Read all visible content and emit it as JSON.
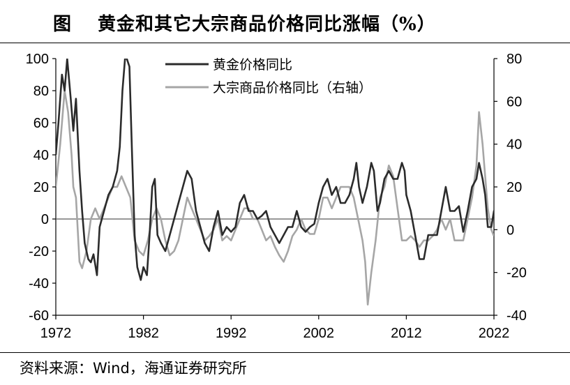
{
  "header": {
    "label": "图",
    "title": "黄金和其它大宗商品价格同比涨幅（%）"
  },
  "footer": {
    "source": "资料来源：Wind，海通证券研究所"
  },
  "colors": {
    "gold": "#2b2b2b",
    "commodity": "#a6a6a6",
    "axis": "#000000"
  },
  "chart_data": {
    "type": "line",
    "title": "黄金和其它大宗商品价格同比涨幅（%）",
    "x_ticks": [
      "1972",
      "1982",
      "1992",
      "2002",
      "2012",
      "2022"
    ],
    "xlim": [
      1972,
      2022
    ],
    "left_axis": {
      "ylim": [
        -60,
        100
      ],
      "ticks": [
        "100",
        "80",
        "60",
        "40",
        "20",
        "0",
        "-20",
        "-40",
        "-60"
      ]
    },
    "right_axis": {
      "ylim": [
        -40,
        80
      ],
      "ticks": [
        "80",
        "60",
        "40",
        "20",
        "0",
        "-20",
        "-40"
      ]
    },
    "legend": {
      "placement": "top-center"
    },
    "series": [
      {
        "name": "黄金价格同比",
        "axis": "left",
        "points": [
          [
            1972,
            40
          ],
          [
            1972.3,
            60
          ],
          [
            1972.7,
            90
          ],
          [
            1973,
            80
          ],
          [
            1973.3,
            100
          ],
          [
            1973.7,
            75
          ],
          [
            1974,
            55
          ],
          [
            1974.3,
            75
          ],
          [
            1974.7,
            30
          ],
          [
            1975,
            5
          ],
          [
            1975.3,
            -15
          ],
          [
            1975.7,
            -25
          ],
          [
            1976,
            -27
          ],
          [
            1976.3,
            -22
          ],
          [
            1976.7,
            -35
          ],
          [
            1977,
            -5
          ],
          [
            1977.5,
            5
          ],
          [
            1978,
            15
          ],
          [
            1978.5,
            20
          ],
          [
            1979,
            30
          ],
          [
            1979.3,
            45
          ],
          [
            1979.6,
            80
          ],
          [
            1979.9,
            100
          ],
          [
            1980.1,
            100
          ],
          [
            1980.4,
            95
          ],
          [
            1980.7,
            40
          ],
          [
            1981,
            -10
          ],
          [
            1981.3,
            -30
          ],
          [
            1981.7,
            -38
          ],
          [
            1982,
            -30
          ],
          [
            1982.4,
            -35
          ],
          [
            1982.7,
            -10
          ],
          [
            1983,
            20
          ],
          [
            1983.3,
            25
          ],
          [
            1983.6,
            -10
          ],
          [
            1984,
            -15
          ],
          [
            1984.5,
            -20
          ],
          [
            1985,
            -10
          ],
          [
            1985.5,
            0
          ],
          [
            1986,
            10
          ],
          [
            1986.5,
            20
          ],
          [
            1987,
            30
          ],
          [
            1987.5,
            25
          ],
          [
            1988,
            5
          ],
          [
            1988.5,
            -5
          ],
          [
            1989,
            -15
          ],
          [
            1989.5,
            -20
          ],
          [
            1990,
            -5
          ],
          [
            1990.5,
            5
          ],
          [
            1991,
            -10
          ],
          [
            1991.5,
            -5
          ],
          [
            1992,
            -8
          ],
          [
            1992.5,
            -5
          ],
          [
            1993,
            10
          ],
          [
            1993.5,
            15
          ],
          [
            1994,
            5
          ],
          [
            1994.5,
            5
          ],
          [
            1995,
            0
          ],
          [
            1995.5,
            2
          ],
          [
            1996,
            5
          ],
          [
            1996.5,
            -5
          ],
          [
            1997,
            -10
          ],
          [
            1997.5,
            -15
          ],
          [
            1998,
            -10
          ],
          [
            1998.5,
            -5
          ],
          [
            1999,
            -5
          ],
          [
            1999.5,
            5
          ],
          [
            2000,
            -5
          ],
          [
            2000.5,
            -8
          ],
          [
            2001,
            -5
          ],
          [
            2001.5,
            -3
          ],
          [
            2002,
            10
          ],
          [
            2002.5,
            20
          ],
          [
            2003,
            25
          ],
          [
            2003.5,
            15
          ],
          [
            2004,
            20
          ],
          [
            2004.5,
            10
          ],
          [
            2005,
            10
          ],
          [
            2005.5,
            15
          ],
          [
            2006,
            25
          ],
          [
            2006.3,
            35
          ],
          [
            2006.6,
            20
          ],
          [
            2007,
            10
          ],
          [
            2007.5,
            20
          ],
          [
            2008,
            35
          ],
          [
            2008.3,
            30
          ],
          [
            2008.7,
            5
          ],
          [
            2009,
            10
          ],
          [
            2009.5,
            25
          ],
          [
            2010,
            30
          ],
          [
            2010.5,
            25
          ],
          [
            2011,
            25
          ],
          [
            2011.5,
            35
          ],
          [
            2011.8,
            30
          ],
          [
            2012,
            15
          ],
          [
            2012.5,
            5
          ],
          [
            2013,
            -10
          ],
          [
            2013.5,
            -25
          ],
          [
            2014,
            -25
          ],
          [
            2014.5,
            -10
          ],
          [
            2015,
            -10
          ],
          [
            2015.5,
            -10
          ],
          [
            2016,
            5
          ],
          [
            2016.5,
            20
          ],
          [
            2017,
            5
          ],
          [
            2017.5,
            5
          ],
          [
            2018,
            8
          ],
          [
            2018.5,
            -8
          ],
          [
            2019,
            5
          ],
          [
            2019.5,
            20
          ],
          [
            2020,
            25
          ],
          [
            2020.3,
            35
          ],
          [
            2020.7,
            25
          ],
          [
            2021,
            15
          ],
          [
            2021.3,
            -5
          ],
          [
            2021.7,
            -5
          ],
          [
            2022,
            5
          ],
          [
            2022.3,
            -5
          ]
        ]
      },
      {
        "name": "大宗商品价格同比（右轴）",
        "axis": "right",
        "points": [
          [
            1972,
            20
          ],
          [
            1972.5,
            40
          ],
          [
            1973,
            65
          ],
          [
            1973.4,
            55
          ],
          [
            1973.8,
            35
          ],
          [
            1974,
            20
          ],
          [
            1974.3,
            15
          ],
          [
            1974.7,
            -15
          ],
          [
            1975,
            -18
          ],
          [
            1975.5,
            -10
          ],
          [
            1976,
            5
          ],
          [
            1976.5,
            10
          ],
          [
            1977,
            5
          ],
          [
            1977.5,
            10
          ],
          [
            1978,
            15
          ],
          [
            1978.5,
            20
          ],
          [
            1979,
            20
          ],
          [
            1979.5,
            25
          ],
          [
            1980,
            20
          ],
          [
            1980.5,
            15
          ],
          [
            1981,
            -5
          ],
          [
            1981.5,
            -10
          ],
          [
            1982,
            -12
          ],
          [
            1982.5,
            -5
          ],
          [
            1983,
            5
          ],
          [
            1983.5,
            10
          ],
          [
            1984,
            5
          ],
          [
            1984.5,
            -5
          ],
          [
            1985,
            -12
          ],
          [
            1985.5,
            -10
          ],
          [
            1986,
            -5
          ],
          [
            1986.5,
            5
          ],
          [
            1987,
            15
          ],
          [
            1987.5,
            10
          ],
          [
            1988,
            5
          ],
          [
            1988.5,
            0
          ],
          [
            1989,
            -5
          ],
          [
            1989.5,
            -3
          ],
          [
            1990,
            0
          ],
          [
            1990.5,
            5
          ],
          [
            1991,
            -5
          ],
          [
            1991.5,
            -3
          ],
          [
            1992,
            -5
          ],
          [
            1992.5,
            0
          ],
          [
            1993,
            5
          ],
          [
            1993.5,
            10
          ],
          [
            1994,
            10
          ],
          [
            1994.5,
            5
          ],
          [
            1995,
            5
          ],
          [
            1995.5,
            0
          ],
          [
            1996,
            -5
          ],
          [
            1996.5,
            -3
          ],
          [
            1997,
            -8
          ],
          [
            1997.5,
            -12
          ],
          [
            1998,
            -15
          ],
          [
            1998.5,
            -10
          ],
          [
            1999,
            -3
          ],
          [
            1999.5,
            0
          ],
          [
            2000,
            5
          ],
          [
            2000.5,
            0
          ],
          [
            2001,
            -2
          ],
          [
            2001.5,
            -2
          ],
          [
            2002,
            5
          ],
          [
            2002.5,
            15
          ],
          [
            2003,
            15
          ],
          [
            2003.5,
            10
          ],
          [
            2004,
            15
          ],
          [
            2004.5,
            20
          ],
          [
            2005,
            20
          ],
          [
            2005.5,
            20
          ],
          [
            2006,
            15
          ],
          [
            2006.5,
            5
          ],
          [
            2007,
            -5
          ],
          [
            2007.3,
            -15
          ],
          [
            2007.6,
            -35
          ],
          [
            2008,
            -20
          ],
          [
            2008.5,
            -5
          ],
          [
            2009,
            15
          ],
          [
            2009.5,
            20
          ],
          [
            2010,
            30
          ],
          [
            2010.5,
            25
          ],
          [
            2011,
            10
          ],
          [
            2011.5,
            -5
          ],
          [
            2012,
            -5
          ],
          [
            2012.5,
            -3
          ],
          [
            2013,
            -5
          ],
          [
            2013.5,
            -8
          ],
          [
            2014,
            -5
          ],
          [
            2014.5,
            -5
          ],
          [
            2015,
            -3
          ],
          [
            2015.5,
            0
          ],
          [
            2016,
            5
          ],
          [
            2016.5,
            0
          ],
          [
            2017,
            5
          ],
          [
            2017.5,
            -5
          ],
          [
            2018,
            -5
          ],
          [
            2018.5,
            -5
          ],
          [
            2019,
            5
          ],
          [
            2019.5,
            15
          ],
          [
            2020,
            30
          ],
          [
            2020.3,
            55
          ],
          [
            2020.7,
            40
          ],
          [
            2021,
            25
          ],
          [
            2021.3,
            10
          ],
          [
            2021.7,
            0
          ],
          [
            2022,
            -3
          ]
        ]
      }
    ]
  }
}
